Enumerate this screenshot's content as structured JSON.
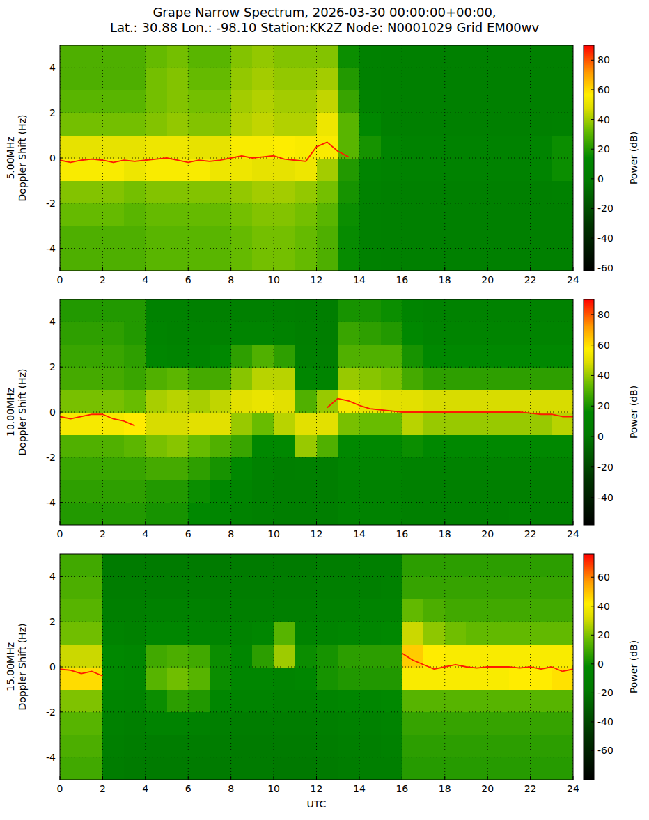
{
  "chart_data": [
    {
      "type": "heatmap",
      "title": "Grape Narrow Spectrum, 2026-03-30 00:00:00+00:00,",
      "subtitle": "Lat.: 30.88 Lon.: -98.10 Station:KK2Z Node: N0001029 Grid EM00wv",
      "ylabel": "5.00MHz\nDoppler Shift (Hz)",
      "xlim": [
        0,
        24
      ],
      "xticks": [
        0,
        2,
        4,
        6,
        8,
        10,
        12,
        14,
        16,
        18,
        20,
        22,
        24
      ],
      "ylim": [
        -5,
        5
      ],
      "yticks": [
        -4,
        -2,
        0,
        2,
        4
      ],
      "grid": true,
      "colorbar": {
        "label": "Power (dB)",
        "range": [
          -62,
          90
        ],
        "ticks": [
          -60,
          -40,
          -20,
          0,
          20,
          40,
          60,
          80
        ]
      },
      "x_edges": [
        0,
        1,
        2,
        3,
        4,
        5,
        6,
        7,
        8,
        9,
        10,
        11,
        12,
        13,
        14,
        15,
        16,
        17,
        18,
        19,
        20,
        21,
        22,
        23,
        24
      ],
      "y_edges": [
        -5,
        -4,
        -3,
        -2,
        -1,
        0,
        1,
        2,
        3,
        4,
        5
      ],
      "cells": [
        [
          28,
          28,
          28,
          28,
          30,
          30,
          30,
          30,
          32,
          34,
          34,
          32,
          28,
          15,
          6,
          5,
          5,
          5,
          5,
          5,
          5,
          5,
          5,
          5
        ],
        [
          28,
          28,
          28,
          28,
          30,
          30,
          30,
          30,
          32,
          34,
          34,
          32,
          28,
          15,
          6,
          5,
          5,
          5,
          5,
          5,
          5,
          5,
          5,
          5
        ],
        [
          32,
          32,
          32,
          30,
          32,
          32,
          32,
          32,
          34,
          36,
          36,
          34,
          30,
          16,
          6,
          5,
          5,
          5,
          5,
          5,
          5,
          5,
          5,
          5
        ],
        [
          36,
          36,
          36,
          34,
          36,
          36,
          36,
          36,
          38,
          40,
          40,
          38,
          34,
          18,
          7,
          5,
          5,
          5,
          5,
          5,
          5,
          5,
          5,
          6
        ],
        [
          55,
          55,
          55,
          52,
          55,
          55,
          55,
          52,
          52,
          50,
          50,
          52,
          40,
          20,
          10,
          8,
          8,
          8,
          8,
          8,
          8,
          8,
          10,
          16
        ],
        [
          50,
          50,
          50,
          50,
          52,
          52,
          50,
          50,
          55,
          55,
          56,
          55,
          55,
          30,
          18,
          10,
          8,
          8,
          8,
          8,
          8,
          8,
          10,
          16
        ],
        [
          34,
          34,
          34,
          34,
          36,
          38,
          36,
          36,
          42,
          44,
          42,
          42,
          52,
          30,
          14,
          5,
          5,
          5,
          5,
          5,
          5,
          5,
          5,
          6
        ],
        [
          30,
          30,
          30,
          30,
          34,
          36,
          34,
          34,
          40,
          42,
          40,
          40,
          44,
          24,
          8,
          5,
          5,
          5,
          5,
          5,
          5,
          5,
          5,
          5
        ],
        [
          28,
          28,
          28,
          28,
          34,
          36,
          32,
          32,
          38,
          40,
          38,
          38,
          40,
          20,
          6,
          5,
          5,
          5,
          5,
          5,
          5,
          5,
          5,
          5
        ],
        [
          28,
          28,
          28,
          28,
          32,
          34,
          30,
          30,
          36,
          38,
          36,
          36,
          36,
          16,
          6,
          5,
          5,
          5,
          5,
          5,
          5,
          5,
          5,
          5
        ]
      ],
      "carrier": {
        "color": "#ff1a00",
        "x": [
          0,
          0.5,
          1,
          1.5,
          2,
          2.5,
          3,
          3.5,
          4,
          4.5,
          5,
          5.5,
          6,
          6.5,
          7,
          7.5,
          8,
          8.5,
          9,
          9.5,
          10,
          10.5,
          11,
          11.5,
          12,
          12.5,
          13,
          13.5
        ],
        "values": [
          -0.1,
          -0.2,
          -0.1,
          -0.05,
          -0.1,
          -0.2,
          -0.1,
          -0.15,
          -0.1,
          -0.05,
          0,
          -0.1,
          -0.2,
          -0.1,
          -0.15,
          -0.1,
          0,
          0.1,
          0,
          0.05,
          0.1,
          -0.05,
          -0.1,
          -0.15,
          0.5,
          0.7,
          0.3,
          0.05
        ]
      }
    },
    {
      "type": "heatmap",
      "ylabel": "10.00MHz\nDoppler Shift (Hz)",
      "xlim": [
        0,
        24
      ],
      "xticks": [
        0,
        2,
        4,
        6,
        8,
        10,
        12,
        14,
        16,
        18,
        20,
        22,
        24
      ],
      "ylim": [
        -5,
        5
      ],
      "yticks": [
        -4,
        -2,
        0,
        2,
        4
      ],
      "grid": true,
      "colorbar": {
        "label": "Power (dB)",
        "range": [
          -58,
          90
        ],
        "ticks": [
          -40,
          -20,
          0,
          20,
          40,
          60,
          80
        ]
      },
      "x_edges": [
        0,
        1,
        2,
        3,
        4,
        5,
        6,
        7,
        8,
        9,
        10,
        11,
        12,
        13,
        14,
        15,
        16,
        17,
        18,
        19,
        20,
        21,
        22,
        23,
        24
      ],
      "y_edges": [
        -5,
        -4,
        -3,
        -2,
        -1,
        0,
        1,
        2,
        3,
        4,
        5
      ],
      "cells": [
        [
          22,
          22,
          22,
          22,
          20,
          20,
          16,
          14,
          10,
          8,
          5,
          5,
          5,
          10,
          10,
          10,
          8,
          8,
          8,
          8,
          8,
          10,
          8,
          8
        ],
        [
          24,
          24,
          24,
          24,
          22,
          22,
          18,
          16,
          12,
          8,
          5,
          5,
          5,
          10,
          10,
          10,
          8,
          8,
          8,
          8,
          8,
          8,
          8,
          8
        ],
        [
          26,
          26,
          26,
          26,
          28,
          28,
          24,
          20,
          16,
          10,
          6,
          8,
          6,
          12,
          12,
          12,
          10,
          10,
          10,
          10,
          10,
          10,
          10,
          10
        ],
        [
          30,
          30,
          30,
          32,
          36,
          38,
          34,
          30,
          26,
          16,
          16,
          40,
          30,
          16,
          16,
          16,
          18,
          16,
          16,
          16,
          16,
          16,
          16,
          16
        ],
        [
          55,
          55,
          55,
          58,
          48,
          48,
          50,
          50,
          40,
          34,
          44,
          50,
          50,
          36,
          34,
          34,
          44,
          40,
          40,
          40,
          40,
          40,
          40,
          44
        ],
        [
          36,
          36,
          36,
          34,
          42,
          44,
          42,
          45,
          50,
          52,
          50,
          30,
          40,
          55,
          52,
          50,
          50,
          48,
          48,
          48,
          48,
          48,
          48,
          48
        ],
        [
          28,
          28,
          28,
          26,
          30,
          32,
          28,
          28,
          38,
          44,
          44,
          14,
          12,
          40,
          38,
          36,
          28,
          24,
          24,
          24,
          24,
          24,
          24,
          24
        ],
        [
          26,
          26,
          26,
          24,
          14,
          12,
          12,
          16,
          24,
          30,
          24,
          8,
          6,
          30,
          30,
          30,
          20,
          16,
          16,
          16,
          16,
          16,
          16,
          16
        ],
        [
          24,
          24,
          24,
          22,
          12,
          10,
          10,
          10,
          12,
          12,
          10,
          6,
          5,
          26,
          24,
          22,
          16,
          12,
          12,
          12,
          12,
          12,
          12,
          12
        ],
        [
          22,
          22,
          22,
          22,
          10,
          10,
          8,
          8,
          8,
          8,
          6,
          5,
          5,
          20,
          20,
          18,
          12,
          10,
          10,
          10,
          10,
          10,
          10,
          10
        ]
      ],
      "carrier": {
        "color": "#ff1a00",
        "x": [
          0,
          0.5,
          1,
          1.5,
          2,
          2.5,
          3,
          3.5,
          4,
          4.5,
          5,
          5.5,
          6,
          6.5,
          7,
          7.5,
          8,
          8.5,
          9,
          9.5,
          10,
          10.5,
          11,
          11.5,
          12,
          12.5,
          13,
          13.5,
          14,
          14.5,
          15,
          15.5,
          16,
          16.5,
          17,
          17.5,
          18,
          18.5,
          19,
          19.5,
          20,
          20.5,
          21,
          21.5,
          22,
          22.5,
          23,
          23.5,
          24
        ],
        "values": [
          -0.2,
          -0.3,
          -0.2,
          -0.1,
          -0.1,
          -0.3,
          -0.4,
          -0.6,
          null,
          null,
          null,
          null,
          null,
          null,
          null,
          null,
          null,
          null,
          null,
          null,
          null,
          null,
          null,
          null,
          null,
          0.2,
          0.6,
          0.5,
          0.3,
          0.15,
          0.1,
          0.05,
          0,
          0,
          0,
          0,
          0,
          0,
          0,
          0,
          0,
          0,
          0,
          0,
          -0.05,
          -0.1,
          -0.1,
          -0.2,
          -0.2
        ]
      }
    },
    {
      "type": "heatmap",
      "ylabel": "15.00MHz\nDoppler Shift (Hz)",
      "xlabel": "UTC",
      "xlim": [
        0,
        24
      ],
      "xticks": [
        0,
        2,
        4,
        6,
        8,
        10,
        12,
        14,
        16,
        18,
        20,
        22,
        24
      ],
      "ylim": [
        -5,
        5
      ],
      "yticks": [
        -4,
        -2,
        0,
        2,
        4
      ],
      "grid": true,
      "colorbar": {
        "label": "Power (dB)",
        "range": [
          -80,
          76
        ],
        "ticks": [
          -60,
          -40,
          -20,
          0,
          20,
          40,
          60
        ]
      },
      "x_edges": [
        0,
        1,
        2,
        3,
        4,
        5,
        6,
        7,
        8,
        9,
        10,
        11,
        12,
        13,
        14,
        15,
        16,
        17,
        18,
        19,
        20,
        21,
        22,
        23,
        24
      ],
      "y_edges": [
        -5,
        -4,
        -3,
        -2,
        -1,
        0,
        1,
        2,
        3,
        4,
        5
      ],
      "cells": [
        [
          10,
          10,
          -14,
          -16,
          -16,
          -16,
          -16,
          -16,
          -16,
          -16,
          -18,
          -18,
          -16,
          -14,
          -12,
          -12,
          5,
          5,
          5,
          5,
          5,
          5,
          5,
          5
        ],
        [
          12,
          12,
          -12,
          -14,
          -14,
          -14,
          -14,
          -14,
          -16,
          -16,
          -16,
          -16,
          -14,
          -12,
          -12,
          -10,
          6,
          6,
          6,
          6,
          6,
          6,
          6,
          6
        ],
        [
          14,
          14,
          -10,
          -12,
          -8,
          -8,
          -10,
          -12,
          -14,
          -14,
          -14,
          -14,
          -12,
          -10,
          -10,
          -8,
          8,
          8,
          8,
          8,
          8,
          8,
          8,
          8
        ],
        [
          20,
          20,
          -6,
          -8,
          0,
          6,
          4,
          -4,
          -8,
          -8,
          -10,
          -10,
          -6,
          -4,
          -4,
          -2,
          14,
          14,
          14,
          14,
          14,
          14,
          14,
          14
        ],
        [
          45,
          45,
          -2,
          -4,
          14,
          18,
          14,
          0,
          -4,
          -4,
          -6,
          -4,
          2,
          4,
          4,
          4,
          40,
          40,
          40,
          40,
          40,
          42,
          42,
          44
        ],
        [
          30,
          30,
          -2,
          -4,
          10,
          12,
          10,
          0,
          -4,
          6,
          24,
          0,
          2,
          6,
          6,
          6,
          48,
          42,
          40,
          40,
          40,
          40,
          40,
          40
        ],
        [
          18,
          18,
          -8,
          -10,
          -4,
          -4,
          -6,
          -6,
          -8,
          -4,
          14,
          -8,
          -6,
          -4,
          -4,
          -2,
          30,
          22,
          18,
          16,
          16,
          16,
          16,
          16
        ],
        [
          14,
          14,
          -12,
          -12,
          -10,
          -10,
          -10,
          -12,
          -12,
          -12,
          -12,
          -12,
          -10,
          -10,
          -8,
          -8,
          16,
          12,
          10,
          10,
          10,
          10,
          10,
          10
        ],
        [
          12,
          12,
          -14,
          -14,
          -14,
          -14,
          -14,
          -14,
          -14,
          -14,
          -14,
          -14,
          -12,
          -12,
          -12,
          -10,
          8,
          8,
          8,
          8,
          8,
          8,
          8,
          8
        ],
        [
          10,
          10,
          -16,
          -16,
          -16,
          -16,
          -16,
          -16,
          -16,
          -16,
          -16,
          -16,
          -14,
          -14,
          -12,
          -12,
          6,
          6,
          6,
          6,
          6,
          6,
          6,
          6
        ]
      ],
      "carrier": {
        "color": "#ff1a00",
        "x": [
          0,
          0.5,
          1,
          1.5,
          2,
          2.5,
          3,
          3.5,
          4,
          4.5,
          5,
          5.5,
          6,
          6.5,
          7,
          7.5,
          8,
          8.5,
          9,
          9.5,
          10,
          10.5,
          11,
          11.5,
          12,
          12.5,
          13,
          13.5,
          14,
          14.5,
          15,
          15.5,
          16,
          16.5,
          17,
          17.5,
          18,
          18.5,
          19,
          19.5,
          20,
          20.5,
          21,
          21.5,
          22,
          22.5,
          23,
          23.5,
          24
        ],
        "values": [
          -0.1,
          -0.15,
          -0.3,
          -0.2,
          -0.4,
          null,
          null,
          null,
          null,
          null,
          null,
          null,
          null,
          null,
          null,
          null,
          null,
          null,
          null,
          null,
          null,
          null,
          null,
          null,
          null,
          null,
          null,
          null,
          null,
          null,
          null,
          null,
          0.6,
          0.3,
          0.1,
          -0.1,
          0,
          0.1,
          0,
          -0.05,
          0,
          0,
          0,
          -0.05,
          0,
          -0.1,
          0,
          -0.2,
          -0.1
        ]
      }
    }
  ]
}
